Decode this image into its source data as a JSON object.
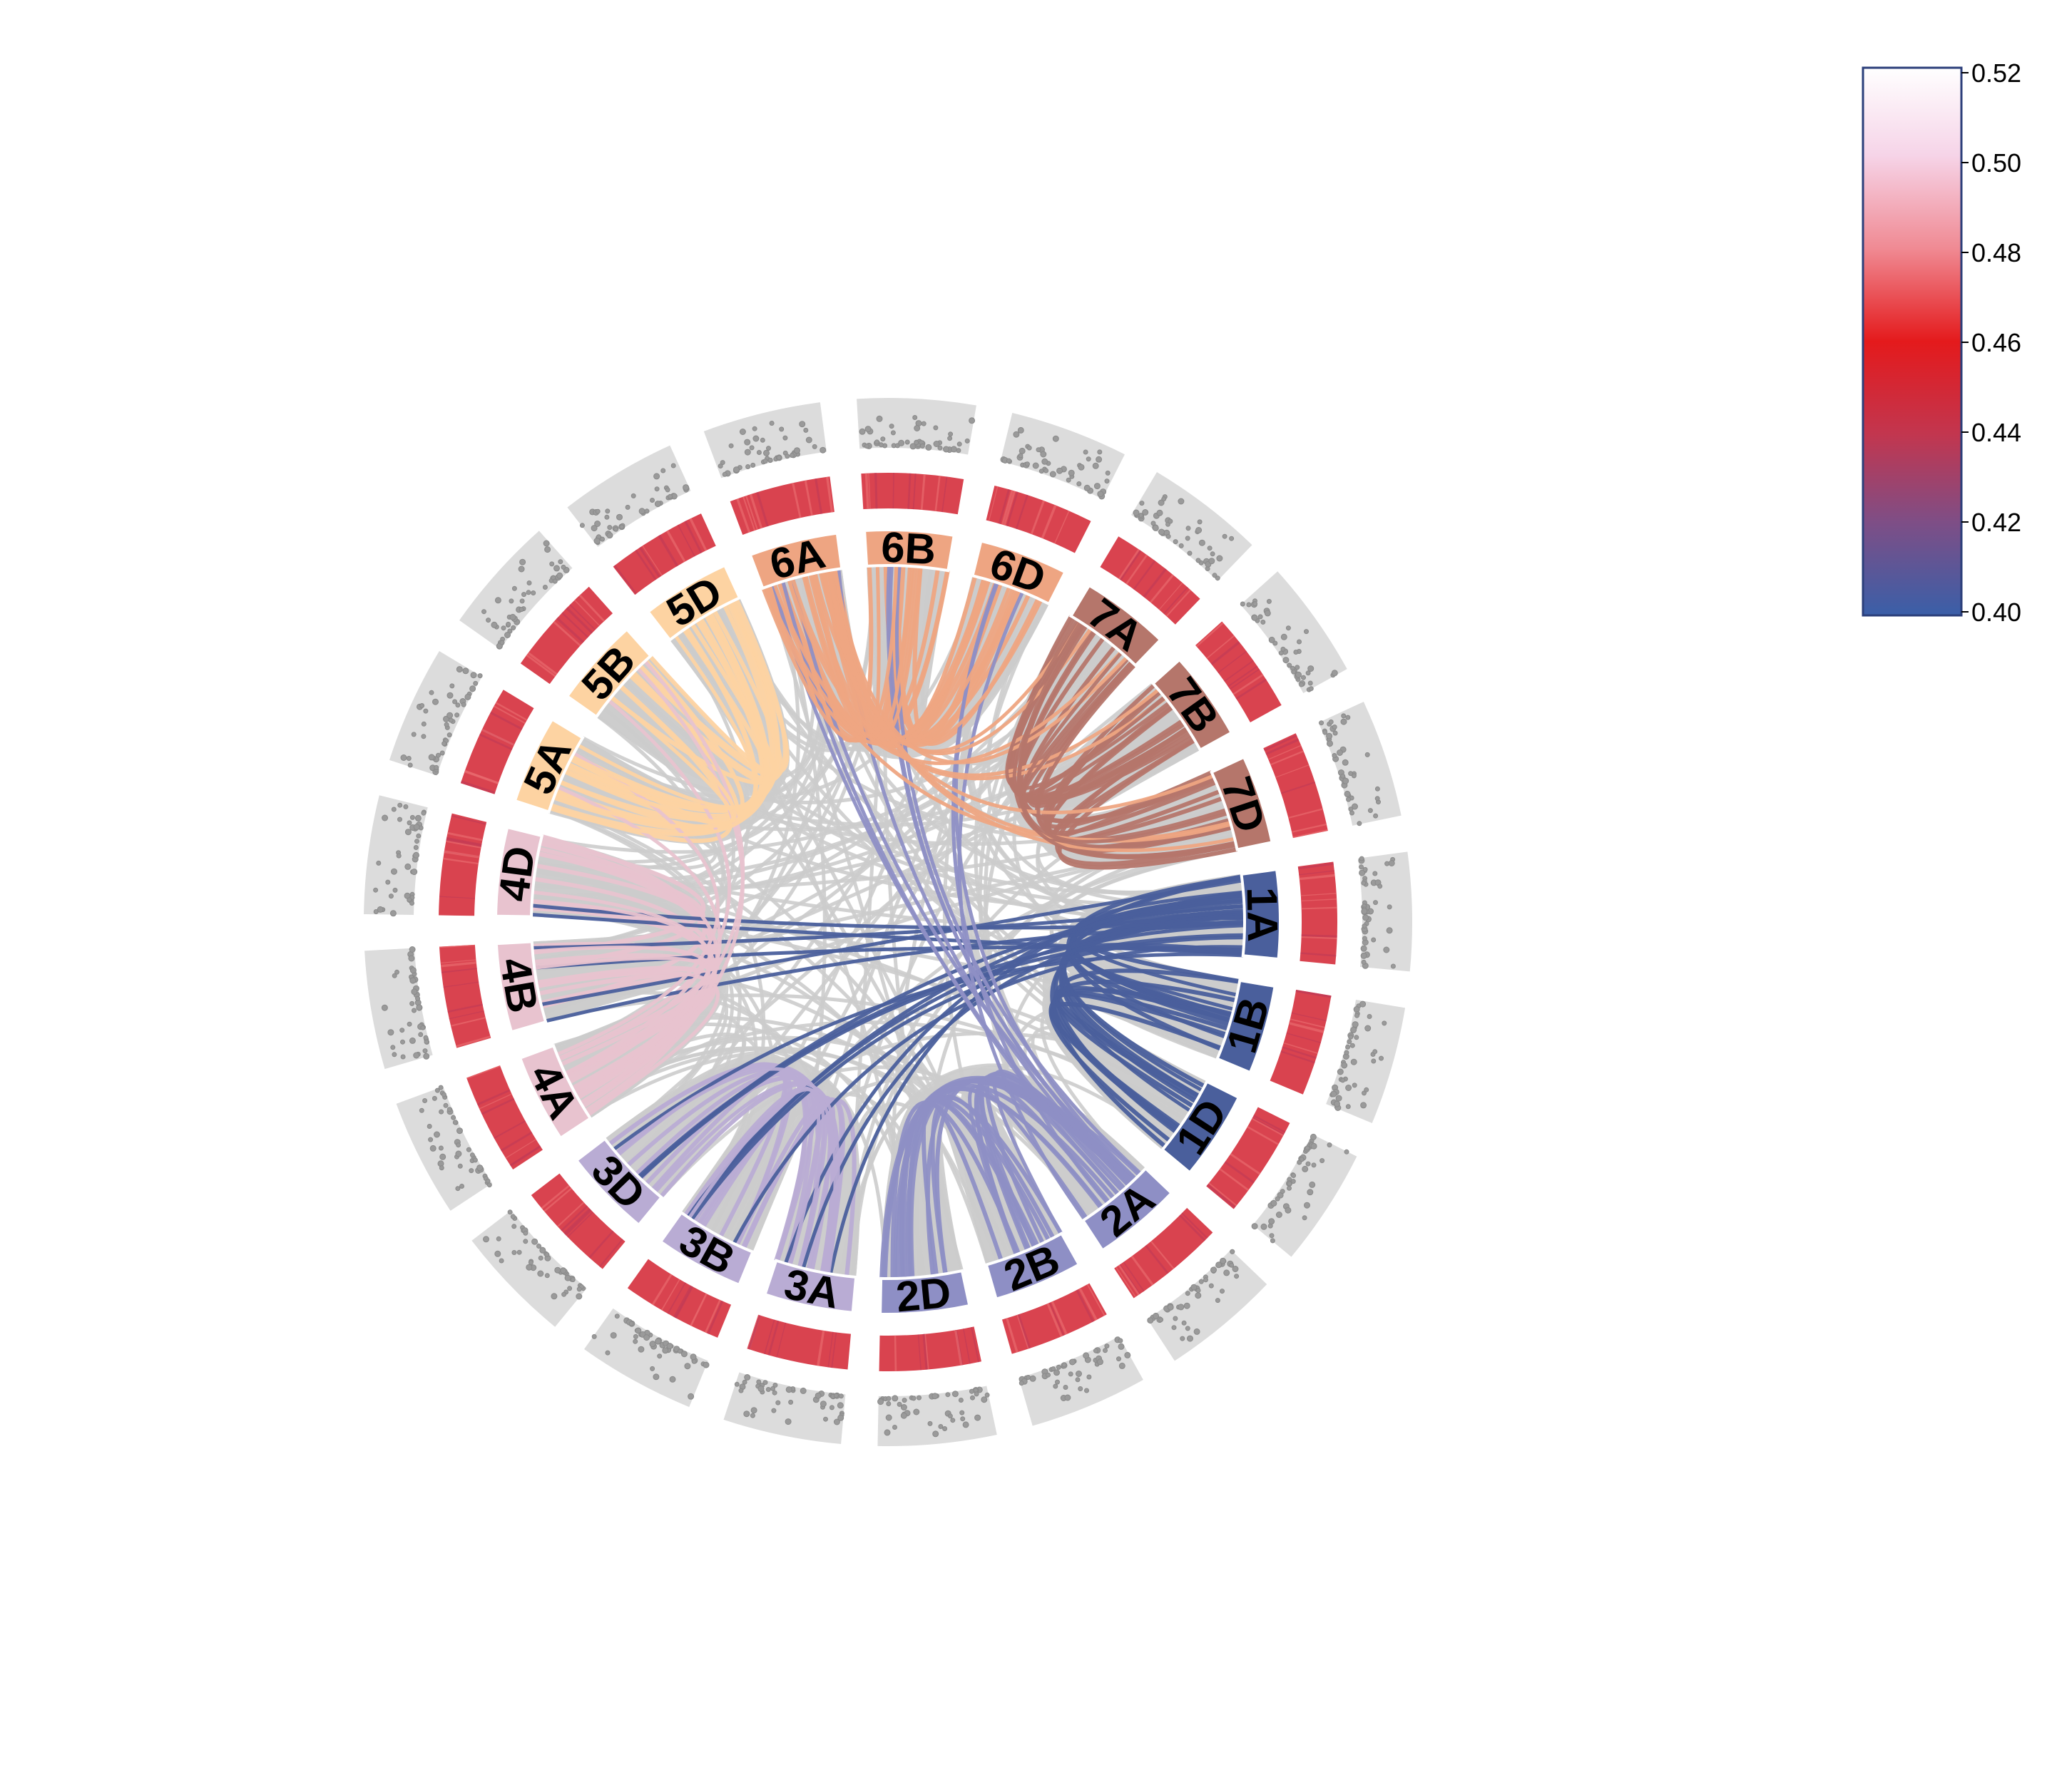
{
  "chart_data": {
    "type": "chord",
    "tracks": [
      "chromosome ideogram",
      "heatmap",
      "scatter"
    ],
    "chromosomes": [
      {
        "name": "1A",
        "color": "#4a5f9c"
      },
      {
        "name": "1B",
        "color": "#4a5f9c"
      },
      {
        "name": "1D",
        "color": "#4a5f9c"
      },
      {
        "name": "2A",
        "color": "#8e8fc5"
      },
      {
        "name": "2B",
        "color": "#8e8fc5"
      },
      {
        "name": "2D",
        "color": "#8e8fc5"
      },
      {
        "name": "3A",
        "color": "#b9acd4"
      },
      {
        "name": "3B",
        "color": "#b9acd4"
      },
      {
        "name": "3D",
        "color": "#b9acd4"
      },
      {
        "name": "4A",
        "color": "#e8c3cf"
      },
      {
        "name": "4B",
        "color": "#e8c3cf"
      },
      {
        "name": "4D",
        "color": "#e8c3cf"
      },
      {
        "name": "5A",
        "color": "#fdd3a2"
      },
      {
        "name": "5B",
        "color": "#fdd3a2"
      },
      {
        "name": "5D",
        "color": "#fdd3a2"
      },
      {
        "name": "6A",
        "color": "#eea582"
      },
      {
        "name": "6B",
        "color": "#eea582"
      },
      {
        "name": "6D",
        "color": "#eea582"
      },
      {
        "name": "7A",
        "color": "#b5766b"
      },
      {
        "name": "7B",
        "color": "#b5766b"
      },
      {
        "name": "7D",
        "color": "#b5766b"
      }
    ],
    "link_groups": [
      {
        "from": "1A",
        "to": [
          "1B",
          "1D",
          "4B",
          "4D",
          "3D",
          "3B",
          "3A"
        ]
      },
      {
        "from": "2A",
        "to": [
          "2B",
          "2D",
          "6A",
          "6B",
          "6D"
        ]
      },
      {
        "from": "3A",
        "to": [
          "3B",
          "3D"
        ]
      },
      {
        "from": "4A",
        "to": [
          "4B",
          "4D",
          "5A",
          "5B"
        ]
      },
      {
        "from": "5A",
        "to": [
          "5B",
          "5D"
        ]
      },
      {
        "from": "6A",
        "to": [
          "6B",
          "6D",
          "7A",
          "7B",
          "7D"
        ]
      },
      {
        "from": "7A",
        "to": [
          "7B",
          "7D"
        ]
      }
    ],
    "legend": {
      "type": "colorbar",
      "placement": "top-right",
      "min": 0.4,
      "max": 0.52,
      "ticks": [
        "0.52",
        "0.50",
        "0.48",
        "0.46",
        "0.44",
        "0.42",
        "0.40"
      ],
      "colors": [
        "#ffffff",
        "#f4b8c8",
        "#ec6a6a",
        "#e41a1c",
        "#c2364f",
        "#7e4e86",
        "#3a5fa8"
      ]
    },
    "heatmap_color": "#d9434f",
    "scatter_background": "#dcdcdc",
    "scatter_point_color": "#9a9a9a",
    "grey_link_color": "#cccccc"
  }
}
